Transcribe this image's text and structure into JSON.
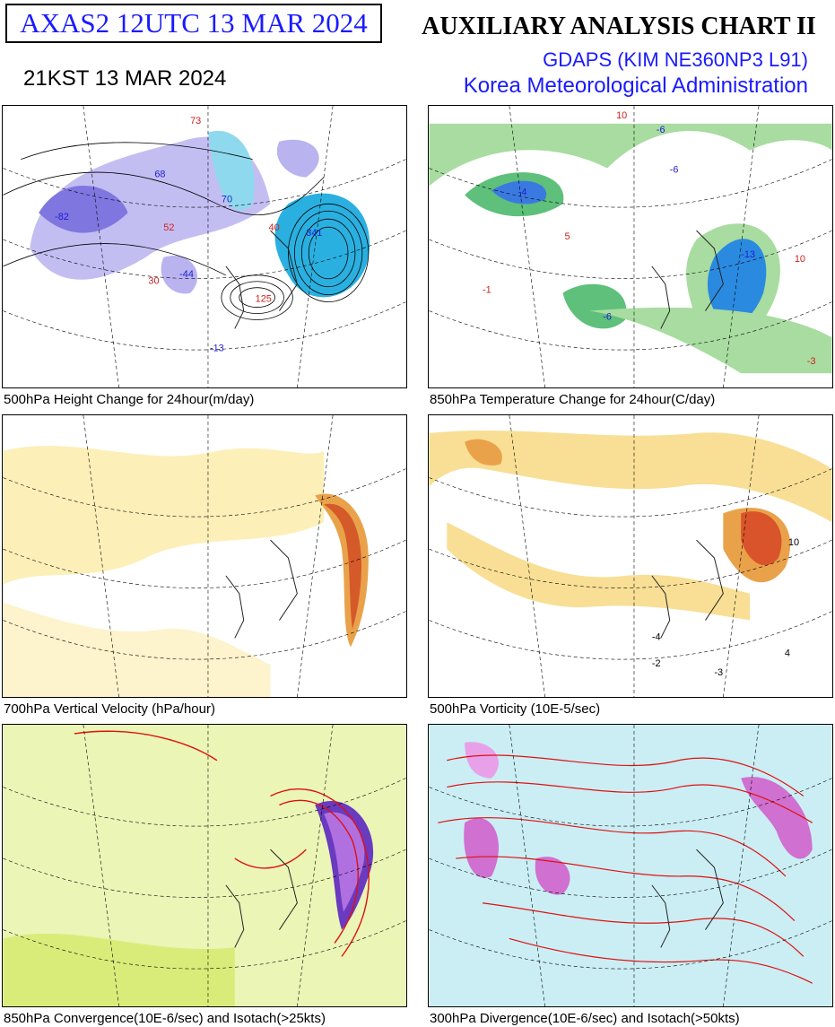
{
  "header": {
    "product_id": "AXAS2  12UTC 13 MAR 2024",
    "local_time": "21KST 13 MAR 2024",
    "chart_title": "AUXILIARY ANALYSIS CHART II",
    "model": "GDAPS (KIM NE360NP3 L91)",
    "agency": "Korea Meteorological Administration"
  },
  "panels": [
    {
      "caption": "500hPa Height Change for 24hour(m/day)",
      "labels": [
        "73",
        "68",
        "70",
        "52",
        "40",
        "341",
        "30",
        "-44",
        "-82",
        "-13",
        "125"
      ]
    },
    {
      "caption": "850hPa Temperature Change for 24hour(C/day)",
      "labels": [
        "10",
        "-6",
        "-6",
        "-4",
        "5",
        "-13",
        "-6",
        "-1",
        "10",
        "-3"
      ]
    },
    {
      "caption": "700hPa Vertical Velocity (hPa/hour)",
      "labels": []
    },
    {
      "caption": "500hPa Vorticity (10E-5/sec)",
      "labels": [
        "-4",
        "-3",
        "10",
        "-2",
        "4"
      ]
    },
    {
      "caption": "850hPa Convergence(10E-6/sec) and Isotach(>25kts)",
      "labels": []
    },
    {
      "caption": "300hPa Divergence(10E-6/sec) and Isotach(>50kts)",
      "labels": []
    }
  ],
  "colors": {
    "title_blue": "#1a1aff",
    "height_change_fill": "#b9b3f0",
    "height_change_core": "#2ab0e0",
    "temp_change_fill": "#a8dca0",
    "temp_change_core": "#2a8ae0",
    "velocity_fill": "#fbe89a",
    "vorticity_fill": "#f6d77a",
    "vorticity_core": "#d9542a",
    "convergence_fill": "#d9ec7a",
    "divergence_fill": "#a6e3ec",
    "isotach_line": "#e01010"
  }
}
